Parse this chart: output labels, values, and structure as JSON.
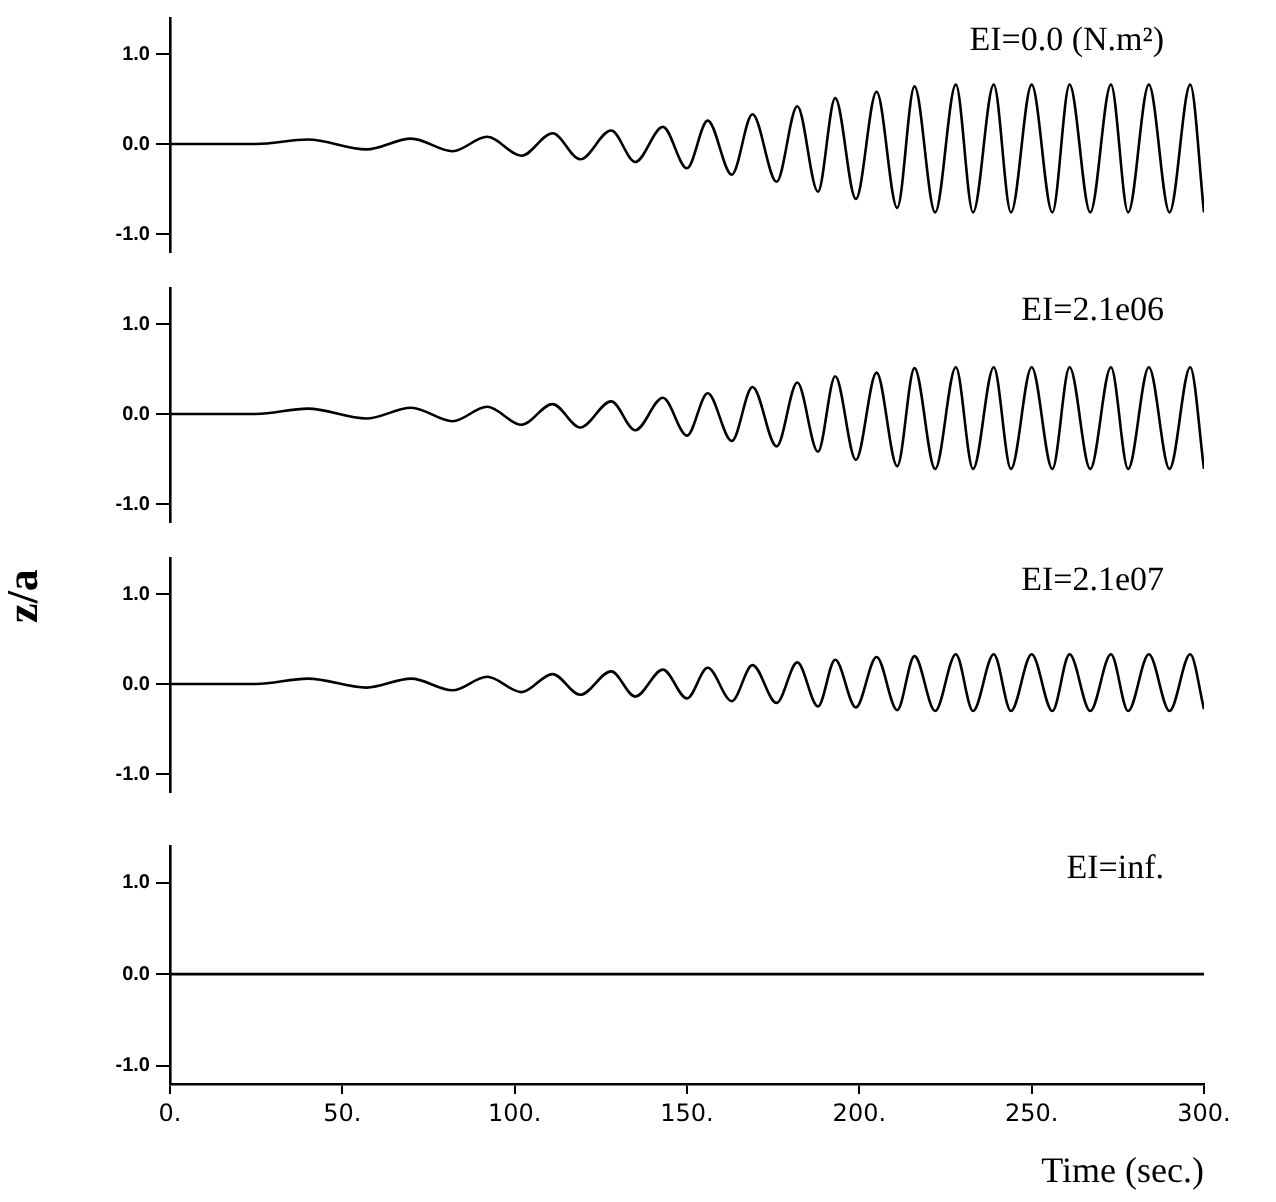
{
  "chart_data": [
    {
      "type": "line",
      "title": "EI=0.0 (N.m²)",
      "color": "#000000",
      "marker": "none",
      "grid": false,
      "legend": false,
      "tick_labels": "y",
      "xlim": [
        0,
        300
      ],
      "ylim": [
        -1.2,
        1.4
      ],
      "yticks": [
        {
          "value": -1,
          "label": "-1.0"
        },
        {
          "value": 0,
          "label": "0.0"
        },
        {
          "value": 1,
          "label": "1.0"
        }
      ],
      "x": [
        0,
        25,
        40,
        57,
        70,
        82,
        92,
        102,
        111,
        119,
        128,
        135,
        143,
        150,
        156,
        163,
        169,
        176,
        182,
        188,
        193,
        199,
        205,
        211,
        216,
        222,
        228,
        233,
        239,
        244,
        250,
        256,
        261,
        267,
        273,
        278,
        284,
        290,
        296,
        300
      ],
      "values": [
        0,
        0,
        0.05,
        -0.06,
        0.06,
        -0.08,
        0.08,
        -0.13,
        0.12,
        -0.17,
        0.15,
        -0.2,
        0.19,
        -0.27,
        0.26,
        -0.34,
        0.33,
        -0.42,
        0.42,
        -0.53,
        0.51,
        -0.61,
        0.58,
        -0.71,
        0.64,
        -0.76,
        0.66,
        -0.76,
        0.66,
        -0.76,
        0.66,
        -0.76,
        0.66,
        -0.76,
        0.66,
        -0.76,
        0.66,
        -0.76,
        0.66,
        -0.76
      ]
    },
    {
      "type": "line",
      "title": "EI=2.1e06",
      "ylabel": "z/a",
      "color": "#000000",
      "marker": "none",
      "grid": false,
      "legend": false,
      "tick_labels": "y",
      "xlim": [
        0,
        300
      ],
      "ylim": [
        -1.2,
        1.4
      ],
      "yticks": [
        {
          "value": -1,
          "label": "-1.0"
        },
        {
          "value": 0,
          "label": "0.0"
        },
        {
          "value": 1,
          "label": "1.0"
        }
      ],
      "x": [
        0,
        25,
        40,
        57,
        70,
        82,
        92,
        102,
        111,
        119,
        128,
        135,
        143,
        150,
        156,
        163,
        169,
        176,
        182,
        188,
        193,
        199,
        205,
        211,
        216,
        222,
        228,
        233,
        239,
        244,
        250,
        256,
        261,
        267,
        273,
        278,
        284,
        290,
        296,
        300
      ],
      "values": [
        0,
        0,
        0.06,
        -0.05,
        0.07,
        -0.08,
        0.08,
        -0.12,
        0.11,
        -0.15,
        0.14,
        -0.18,
        0.18,
        -0.24,
        0.23,
        -0.3,
        0.3,
        -0.36,
        0.35,
        -0.42,
        0.42,
        -0.51,
        0.46,
        -0.58,
        0.51,
        -0.61,
        0.52,
        -0.61,
        0.52,
        -0.61,
        0.52,
        -0.61,
        0.52,
        -0.61,
        0.52,
        -0.61,
        0.52,
        -0.61,
        0.52,
        -0.61
      ]
    },
    {
      "type": "line",
      "title": "EI=2.1e07",
      "color": "#000000",
      "marker": "none",
      "grid": false,
      "legend": false,
      "tick_labels": "y",
      "xlim": [
        0,
        300
      ],
      "ylim": [
        -1.2,
        1.4
      ],
      "yticks": [
        {
          "value": -1,
          "label": "-1.0"
        },
        {
          "value": 0,
          "label": "0.0"
        },
        {
          "value": 1,
          "label": "1.0"
        }
      ],
      "x": [
        0,
        25,
        40,
        57,
        70,
        82,
        92,
        102,
        111,
        119,
        128,
        135,
        143,
        150,
        156,
        163,
        169,
        176,
        182,
        188,
        193,
        199,
        205,
        211,
        216,
        222,
        228,
        233,
        239,
        244,
        250,
        256,
        261,
        267,
        273,
        278,
        284,
        290,
        296,
        300
      ],
      "values": [
        0,
        0,
        0.06,
        -0.04,
        0.06,
        -0.07,
        0.08,
        -0.09,
        0.11,
        -0.12,
        0.14,
        -0.14,
        0.16,
        -0.16,
        0.18,
        -0.19,
        0.21,
        -0.21,
        0.24,
        -0.25,
        0.27,
        -0.26,
        0.3,
        -0.29,
        0.31,
        -0.3,
        0.33,
        -0.3,
        0.33,
        -0.3,
        0.33,
        -0.3,
        0.33,
        -0.3,
        0.33,
        -0.3,
        0.33,
        -0.3,
        0.33,
        -0.28
      ]
    },
    {
      "type": "line",
      "title": "EI=inf.",
      "xlabel": "Time (sec.)",
      "color": "#000000",
      "marker": "none",
      "grid": false,
      "legend": false,
      "xlim": [
        0,
        300
      ],
      "xticks": [
        {
          "value": 0,
          "label": "0."
        },
        {
          "value": 50,
          "label": "50."
        },
        {
          "value": 100,
          "label": "100."
        },
        {
          "value": 150,
          "label": "150."
        },
        {
          "value": 200,
          "label": "200."
        },
        {
          "value": 250,
          "label": "250."
        },
        {
          "value": 300,
          "label": "300."
        }
      ],
      "ylim": [
        -1.2,
        1.4
      ],
      "yticks": [
        {
          "value": -1,
          "label": "-1.0"
        },
        {
          "value": 0,
          "label": "0.0"
        },
        {
          "value": 1,
          "label": "1.0"
        }
      ],
      "x": [
        0,
        300
      ],
      "values": [
        0,
        0
      ]
    }
  ]
}
